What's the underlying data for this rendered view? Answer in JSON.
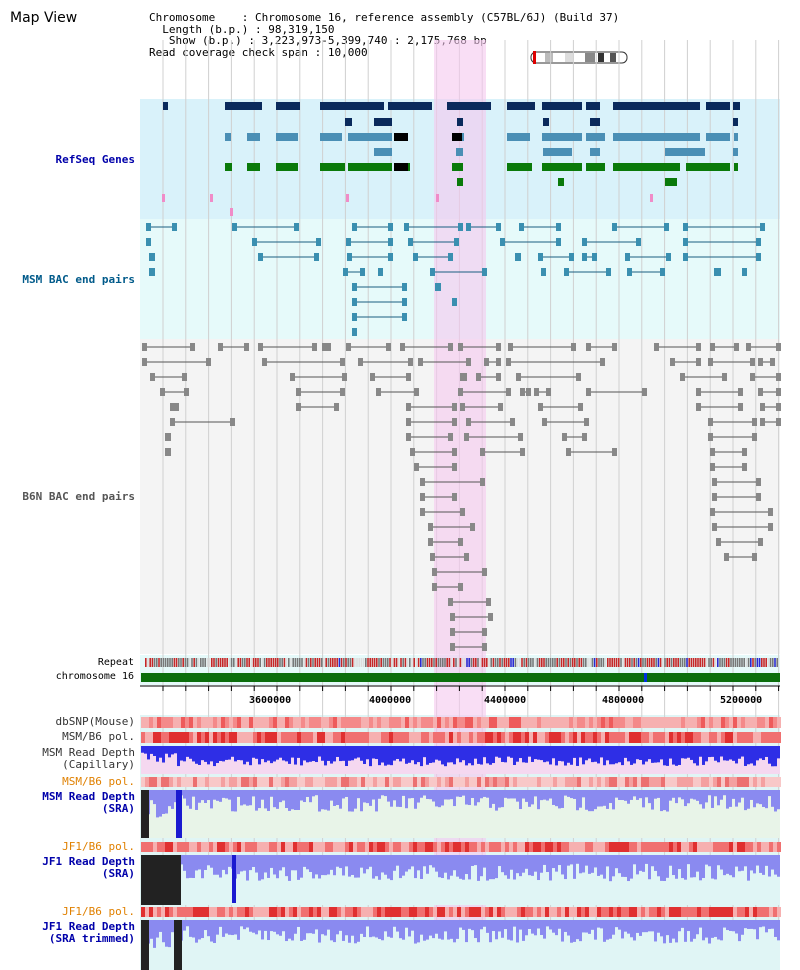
{
  "title": "Map View",
  "info": {
    "chromosome_key": "Chromosome",
    "chromosome_val": "Chromosome 16, reference assembly (C57BL/6J) (Build 37)",
    "length_key": "Length (b.p.)",
    "length_val": "98,319,150",
    "show_key": "Show (b.p.)",
    "show_val": "3,223,973-5,399,740 : 2,175,768 bp",
    "span_key": "Read coverage check span",
    "span_val": "10,000"
  },
  "tracks": {
    "refseq": "RefSeq Genes",
    "msm_bac": "MSM BAC end pairs",
    "b6n_bac": "B6N BAC end pairs",
    "repeat": "Repeat",
    "chromosome": "chromosome 16",
    "dbsnp": "dbSNP(Mouse)",
    "msm_pol1": "MSM/B6 pol.",
    "msm_depth_cap": "MSM Read Depth\n(Capillary)",
    "msm_pol2": "MSM/B6 pol.",
    "msm_depth_sra": "MSM Read Depth\n(SRA)",
    "jf1_pol1": "JF1/B6 pol.",
    "jf1_depth_sra": "JF1 Read Depth\n(SRA)",
    "jf1_pol2": "JF1/B6 pol.",
    "jf1_depth_trim": "JF1 Read Depth\n(SRA trimmed)"
  },
  "axis_ticks": [
    "3600000",
    "4000000",
    "4400000",
    "4800000",
    "5200000"
  ],
  "colors": {
    "refseq_bg": "#d9f2fa",
    "msm_bg": "#e6fafa",
    "b6n_bg": "#f2f2f2",
    "highlight": "#f7d6f0",
    "chromosome_bar": "#0b6e0b",
    "gene_dark": "#0a2a5c",
    "gene_mid": "#4a8fb5",
    "gene_green": "#0a7a0a",
    "depth_blue": "#2020d0",
    "label_blue": "#0000aa",
    "label_orange": "#e08000"
  }
}
